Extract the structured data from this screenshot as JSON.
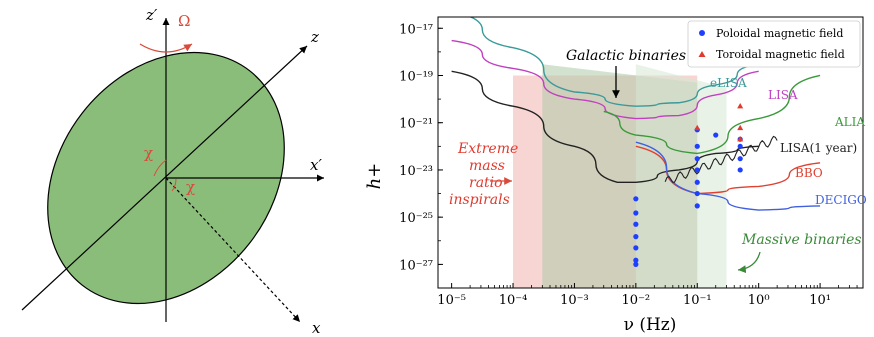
{
  "diagram": {
    "labels": {
      "z_prime": "z′",
      "omega": "Ω",
      "z": "z",
      "x_prime": "x′",
      "x": "x",
      "chi_upper": "χ",
      "chi_lower": "χ"
    },
    "colors": {
      "ellipse_fill": "#8bbd7a",
      "accent_red": "#d94a3a",
      "axis": "#000000"
    }
  },
  "chart_data": {
    "type": "line",
    "xlabel": "ν (Hz)",
    "ylabel": "h+",
    "x_scale": "log",
    "y_scale": "log",
    "xlim": [
      6e-06,
      50
    ],
    "ylim": [
      1e-28,
      3e-17
    ],
    "x_ticks": [
      "10⁻⁵",
      "10⁻⁴",
      "10⁻³",
      "10⁻²",
      "10⁻¹",
      "10⁰",
      "10¹"
    ],
    "y_ticks": [
      "10⁻¹⁷",
      "10⁻¹⁹",
      "10⁻²¹",
      "10⁻²³",
      "10⁻²⁵",
      "10⁻²⁷"
    ],
    "legend": {
      "placement": "top-right",
      "entries": [
        {
          "label": "Poloidal magnetic field",
          "marker": "circle",
          "color": "#1f3fff"
        },
        {
          "label": "Toroidal magnetic field",
          "marker": "triangle",
          "color": "#e03a2e"
        }
      ]
    },
    "regions": [
      {
        "name": "Extreme mass ratio inspirals",
        "x_range": [
          0.0001,
          0.1
        ],
        "y_range": [
          1e-28,
          1e-19
        ],
        "color": "#f4c7c3"
      },
      {
        "name": "Galactic binaries",
        "x_range": [
          0.0003,
          0.1
        ],
        "y_range": [
          1e-28,
          3e-19
        ],
        "color": "#aecaa8"
      },
      {
        "name": "Massive binaries",
        "x_range": [
          0.01,
          0.3
        ],
        "y_range": [
          1e-28,
          3e-20
        ],
        "color": "#d6e8d4"
      }
    ],
    "series": [
      {
        "name": "eLISA",
        "color": "#3a9a9a",
        "points": [
          [
            1e-05,
            5e-17
          ],
          [
            0.0001,
            1.5e-18
          ],
          [
            0.001,
            2e-20
          ],
          [
            0.01,
            5e-21
          ],
          [
            0.05,
            7e-21
          ],
          [
            0.2,
            4e-20
          ],
          [
            1,
            3e-19
          ]
        ]
      },
      {
        "name": "LISA",
        "color": "#c040c0",
        "points": [
          [
            1e-05,
            3e-18
          ],
          [
            0.0001,
            2e-19
          ],
          [
            0.001,
            1e-20
          ],
          [
            0.01,
            1.5e-21
          ],
          [
            0.05,
            2e-21
          ],
          [
            0.2,
            1.5e-20
          ],
          [
            1,
            1.5e-19
          ]
        ]
      },
      {
        "name": "ALIA",
        "color": "#3a9a3a",
        "points": [
          [
            0.003,
            3e-21
          ],
          [
            0.01,
            3e-22
          ],
          [
            0.1,
            5e-23
          ],
          [
            1,
            1.5e-21
          ],
          [
            10,
            1e-19
          ]
        ]
      },
      {
        "name": "LISA(1 year)",
        "color": "#222222",
        "points": [
          [
            1e-05,
            1.5e-19
          ],
          [
            0.0001,
            5e-21
          ],
          [
            0.001,
            1e-22
          ],
          [
            0.005,
            3e-24
          ],
          [
            0.01,
            3e-24
          ],
          [
            0.05,
            1e-23
          ],
          [
            0.2,
            5e-23
          ],
          [
            1,
            1e-22
          ]
        ]
      },
      {
        "name": "BBO",
        "color": "#e04030",
        "points": [
          [
            0.01,
            1e-22
          ],
          [
            0.1,
            1e-24
          ],
          [
            1,
            2e-24
          ],
          [
            10,
            2e-23
          ]
        ]
      },
      {
        "name": "DECIGO",
        "color": "#4060e0",
        "points": [
          [
            0.01,
            1.5e-22
          ],
          [
            0.1,
            1e-24
          ],
          [
            1,
            2e-25
          ],
          [
            10,
            3e-25
          ]
        ]
      }
    ],
    "scatter": {
      "poloidal": [
        [
          0.01,
          6e-25
        ],
        [
          0.01,
          1.5e-25
        ],
        [
          0.01,
          5e-26
        ],
        [
          0.01,
          1.5e-26
        ],
        [
          0.01,
          5e-27
        ],
        [
          0.01,
          1.5e-27
        ],
        [
          0.01,
          1e-27
        ],
        [
          0.1,
          5e-22
        ],
        [
          0.1,
          1e-22
        ],
        [
          0.1,
          3e-23
        ],
        [
          0.1,
          1e-23
        ],
        [
          0.1,
          3e-24
        ],
        [
          0.1,
          1e-24
        ],
        [
          0.1,
          3e-25
        ],
        [
          0.2,
          3e-22
        ],
        [
          0.5,
          2e-22
        ],
        [
          0.5,
          1e-22
        ],
        [
          0.5,
          3e-23
        ],
        [
          0.5,
          1e-23
        ]
      ],
      "toroidal": [
        [
          0.1,
          6e-22
        ],
        [
          0.5,
          5e-21
        ],
        [
          0.5,
          6e-22
        ],
        [
          0.5,
          2e-22
        ]
      ]
    },
    "annotations": [
      {
        "text": "Galactic binaries",
        "style": "italic"
      },
      {
        "text": "Extreme",
        "style": "italic",
        "color": "#e03a2e"
      },
      {
        "text": "mass",
        "style": "italic",
        "color": "#e03a2e"
      },
      {
        "text": "ratio",
        "style": "italic",
        "color": "#e03a2e"
      },
      {
        "text": "inspirals",
        "style": "italic",
        "color": "#e03a2e"
      },
      {
        "text": "Massive binaries",
        "style": "italic",
        "color": "#3a8a3a"
      }
    ]
  }
}
